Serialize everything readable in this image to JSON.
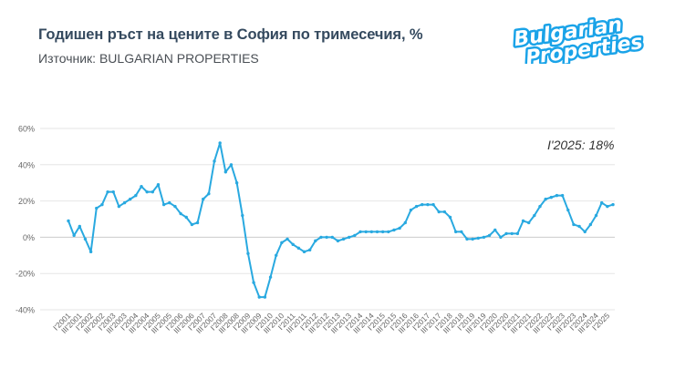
{
  "header": {
    "title": "Годишен ръст на цените в София по тримесечия, %",
    "subtitle": "Източник: BULGARIAN PROPERTIES"
  },
  "logo": {
    "line1": "Bulgarian",
    "line2": "Properties",
    "color": "#1AA3E8"
  },
  "annotation": "I'2025: 18%",
  "colors": {
    "line": "#29A9E0",
    "grid": "#e6e6e6",
    "zero": "#cccccc",
    "axis_text": "#666666"
  },
  "chart_data": {
    "type": "line",
    "title": "Годишен ръст на цените в София по тримесечия, %",
    "subtitle": "Източник: BULGARIAN PROPERTIES",
    "xlabel": "",
    "ylabel": "",
    "ylim": [
      -40,
      60
    ],
    "yticks": [
      "-40%",
      "-20%",
      "0%",
      "20%",
      "40%",
      "60%"
    ],
    "ytick_values": [
      -40,
      -20,
      0,
      20,
      40,
      60
    ],
    "grid": true,
    "legend": "none",
    "annotation": "I'2025: 18%",
    "xtick_labels": [
      "I'2001",
      "III'2001",
      "I'2002",
      "III'2002",
      "I'2003",
      "III'2003",
      "I'2004",
      "III'2004",
      "I'2005",
      "III'2005",
      "I'2006",
      "III'2006",
      "I'2007",
      "III'2007",
      "I'2008",
      "III'2008",
      "I'2009",
      "III'2009",
      "I'2010",
      "III'2010",
      "I'2011",
      "III'2011",
      "I'2012",
      "III'2012",
      "I'2013",
      "III'2013",
      "I'2014",
      "III'2014",
      "I'2015",
      "III'2015",
      "I'2016",
      "III'2016",
      "I'2017",
      "III'2017",
      "I'2018",
      "III'2018",
      "I'2019",
      "III'2019",
      "I'2020",
      "III'2020",
      "I'2021",
      "III'2021",
      "I'2022",
      "III'2022",
      "I'2023",
      "III'2023",
      "I'2024",
      "III'2024",
      "I'2025"
    ],
    "series": [
      {
        "name": "Годишен ръст, %",
        "start": "I'2001",
        "end": "I'2025",
        "frequency": "quarterly",
        "values": [
          9,
          1,
          6,
          -1,
          -8,
          16,
          18,
          25,
          25,
          17,
          19,
          21,
          23,
          28,
          25,
          25,
          29,
          18,
          19,
          17,
          13,
          11,
          7,
          8,
          21,
          24,
          42,
          52,
          36,
          40,
          30,
          12,
          -9,
          -25,
          -33,
          -33,
          -22,
          -10,
          -3,
          -1,
          -4,
          -6,
          -8,
          -7,
          -2,
          0,
          0,
          0,
          -2,
          -1,
          0,
          1,
          3,
          3,
          3,
          3,
          3,
          3,
          4,
          5,
          8,
          15,
          17,
          18,
          18,
          18,
          14,
          14,
          11,
          3,
          3,
          -1,
          -1,
          -0.5,
          0,
          1,
          4,
          0,
          2,
          2,
          2,
          9,
          8,
          12,
          17,
          21,
          22,
          23,
          23,
          15,
          7,
          6,
          3,
          7,
          12,
          19,
          17,
          18
        ]
      }
    ]
  }
}
